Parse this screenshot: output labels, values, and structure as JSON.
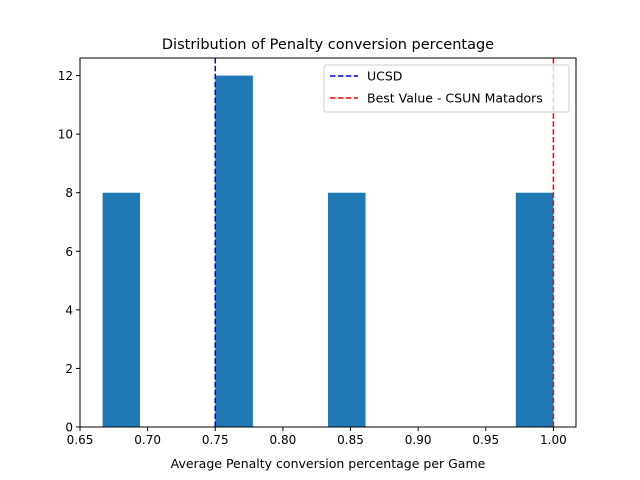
{
  "chart_data": {
    "type": "bar",
    "title": "Distribution of Penalty conversion percentage",
    "xlabel": "Average Penalty conversion percentage per Game",
    "ylabel": "",
    "xlim": [
      0.65,
      1.0167
    ],
    "ylim": [
      0,
      12.6
    ],
    "xticks": [
      "0.65",
      "0.70",
      "0.75",
      "0.80",
      "0.85",
      "0.90",
      "0.95",
      "1.00"
    ],
    "yticks": [
      "0",
      "2",
      "4",
      "6",
      "8",
      "10",
      "12"
    ],
    "bins": [
      {
        "x0": 0.6667,
        "x1": 0.6944,
        "count": 8
      },
      {
        "x0": 0.75,
        "x1": 0.7778,
        "count": 12
      },
      {
        "x0": 0.8333,
        "x1": 0.8611,
        "count": 8
      },
      {
        "x0": 0.9722,
        "x1": 1.0,
        "count": 8
      }
    ],
    "bar_color": "#1f77b4",
    "reference_lines": [
      {
        "name": "UCSD",
        "x": 0.75,
        "color": "#0000ff",
        "style": "dashed"
      },
      {
        "name": "Best Value - CSUN Matadors",
        "x": 1.0,
        "color": "#ff0000",
        "style": "dashed"
      }
    ],
    "legend": {
      "position": "top-right"
    },
    "grid": false
  }
}
